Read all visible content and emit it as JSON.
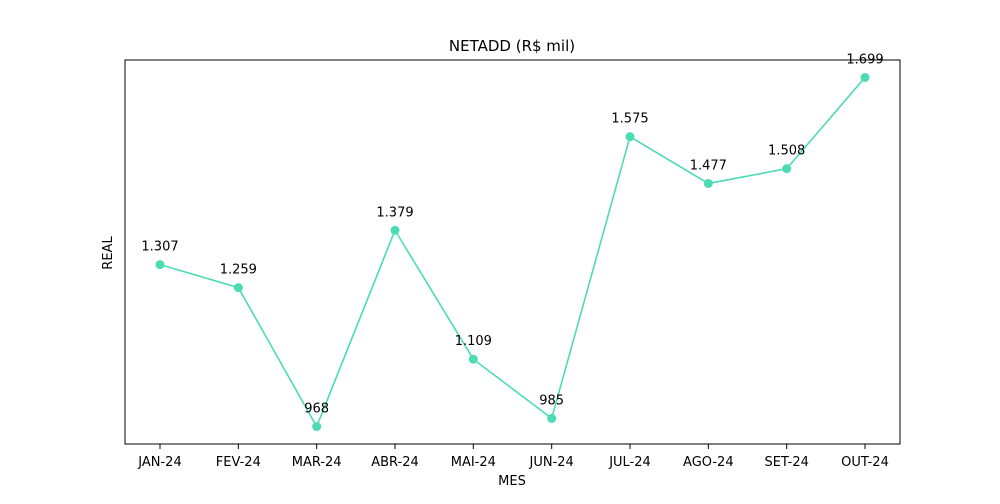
{
  "chart_data": {
    "type": "line",
    "title": "NETADD (R$ mil)",
    "xlabel": "MES",
    "ylabel": "REAL",
    "categories": [
      "JAN-24",
      "FEV-24",
      "MAR-24",
      "ABR-24",
      "MAI-24",
      "JUN-24",
      "JUL-24",
      "AGO-24",
      "SET-24",
      "OUT-24"
    ],
    "values": [
      1307,
      1259,
      968,
      1379,
      1109,
      985,
      1575,
      1477,
      1508,
      1699
    ],
    "data_labels": [
      "1.307",
      "1.259",
      "968",
      "1.379",
      "1.109",
      "985",
      "1.575",
      "1.477",
      "1.508",
      "1.699"
    ],
    "y_ticks_visible": false,
    "grid": false,
    "legend": "none",
    "colors": {
      "line": "#4ddbb5",
      "marker": "#4ddbb5",
      "axes": "#000000"
    }
  }
}
